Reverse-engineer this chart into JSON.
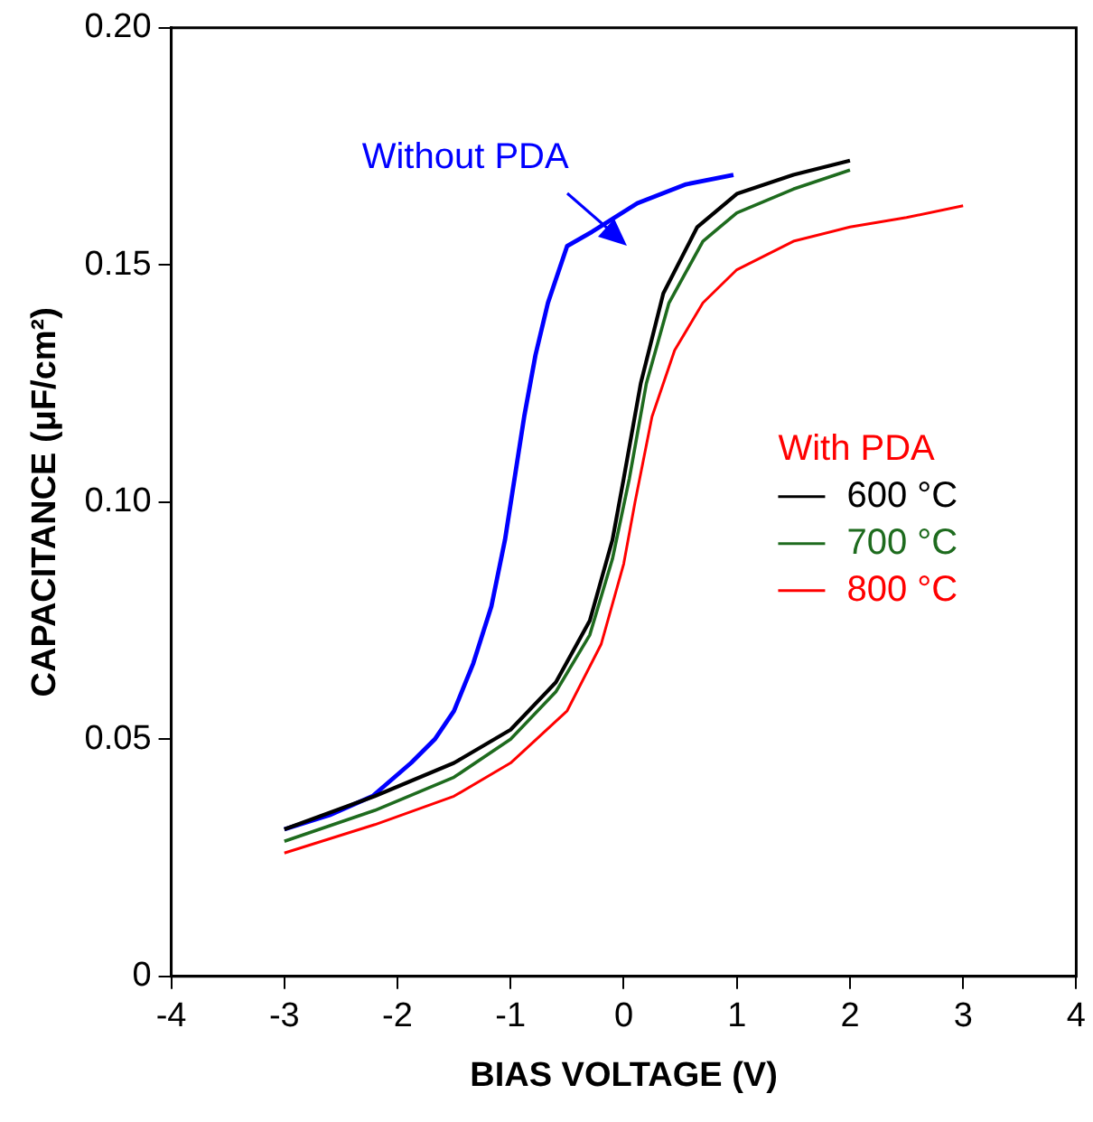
{
  "chart_data": {
    "type": "line",
    "xlabel": "BIAS VOLTAGE (V)",
    "ylabel": "CAPACITANCE (μF/cm²)",
    "legend_title": "With PDA",
    "legend": "right",
    "grid": false,
    "marker": "none",
    "line_style": "solid",
    "xlim": [
      -4,
      4
    ],
    "xticks": [
      -4,
      -3,
      -2,
      -1,
      0,
      1,
      2,
      3,
      4
    ],
    "ylim": [
      0,
      0.2
    ],
    "yticks": [
      0,
      {
        "value": 0.05,
        "label": "0.05"
      },
      {
        "value": 0.1,
        "label": "0.10"
      },
      {
        "value": 0.15,
        "label": "0.15"
      },
      {
        "value": 0.2,
        "label": "0.20"
      }
    ],
    "annotations": [
      "Without PDA"
    ],
    "series": [
      {
        "color": "#0000ff",
        "x": [
          -3,
          -2.6,
          -2.22,
          -1.88,
          -1.67,
          -1.5,
          -1.33,
          -1.17,
          -1.05,
          -0.88,
          -0.78,
          -0.67,
          -0.5,
          -0.28,
          0.12,
          0.55,
          0.97
        ],
        "values": [
          0.031,
          0.034,
          0.038,
          0.045,
          0.05,
          0.056,
          0.066,
          0.078,
          0.092,
          0.118,
          0.131,
          0.142,
          0.154,
          0.157,
          0.163,
          0.167,
          0.169
        ]
      },
      {
        "name": "600 °C",
        "color": "#000000",
        "x": [
          -3,
          -2.2,
          -1.5,
          -1,
          -0.6,
          -0.3,
          -0.1,
          0,
          0.15,
          0.35,
          0.65,
          1,
          1.5,
          2
        ],
        "values": [
          0.031,
          0.038,
          0.045,
          0.052,
          0.062,
          0.075,
          0.092,
          0.105,
          0.125,
          0.144,
          0.158,
          0.165,
          0.169,
          0.172
        ]
      },
      {
        "name": "700 °C",
        "color": "#1e6b1e",
        "x": [
          -3,
          -2.2,
          -1.5,
          -1,
          -0.6,
          -0.3,
          -0.1,
          0.05,
          0.2,
          0.4,
          0.7,
          1,
          1.5,
          2
        ],
        "values": [
          0.0285,
          0.035,
          0.042,
          0.05,
          0.06,
          0.072,
          0.088,
          0.105,
          0.125,
          0.142,
          0.155,
          0.161,
          0.166,
          0.17
        ]
      },
      {
        "name": "800 °C",
        "color": "#ff0000",
        "x": [
          -3,
          -2.2,
          -1.5,
          -1,
          -0.5,
          -0.2,
          0,
          0.1,
          0.25,
          0.45,
          0.7,
          1,
          1.5,
          2,
          2.5,
          3
        ],
        "values": [
          0.026,
          0.032,
          0.038,
          0.045,
          0.056,
          0.07,
          0.087,
          0.1,
          0.118,
          0.132,
          0.142,
          0.149,
          0.155,
          0.158,
          0.16,
          0.1625
        ]
      }
    ]
  }
}
